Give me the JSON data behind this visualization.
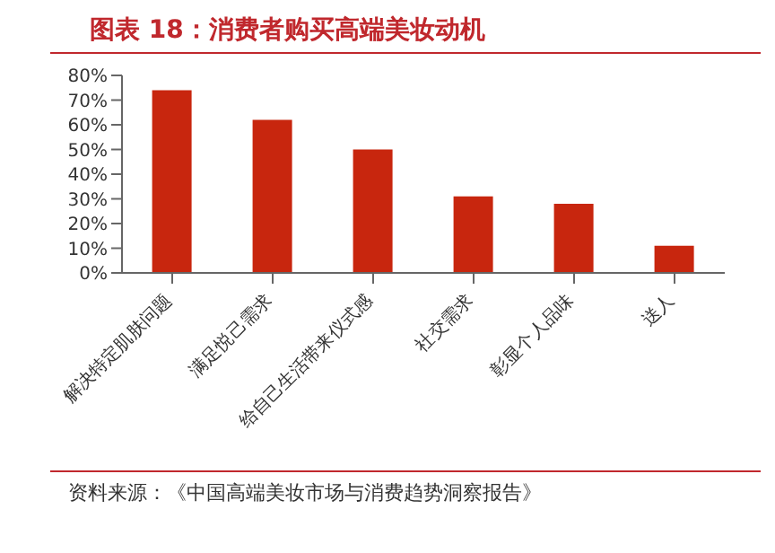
{
  "chart_data": {
    "type": "bar",
    "title": "图表 18：消费者购买高端美妆动机",
    "categories": [
      "解决特定肌肤问题",
      "满足悦己需求",
      "给自己生活带来仪式感",
      "社交需求",
      "彰显个人品味",
      "送人"
    ],
    "values": [
      74,
      62,
      50,
      31,
      28,
      11
    ],
    "color": "#c8260e",
    "ylim": [
      0,
      80
    ],
    "yticks": [
      {
        "value": 0,
        "label": "0%"
      },
      {
        "value": 10,
        "label": "10%"
      },
      {
        "value": 20,
        "label": "20%"
      },
      {
        "value": 30,
        "label": "30%"
      },
      {
        "value": 40,
        "label": "40%"
      },
      {
        "value": 50,
        "label": "50%"
      },
      {
        "value": 60,
        "label": "60%"
      },
      {
        "value": 70,
        "label": "70%"
      },
      {
        "value": 80,
        "label": "80%"
      }
    ],
    "grid": false,
    "legend": false,
    "annotations": [
      "资料来源：《中国高端美妆市场与消费趋势洞察报告》"
    ]
  }
}
